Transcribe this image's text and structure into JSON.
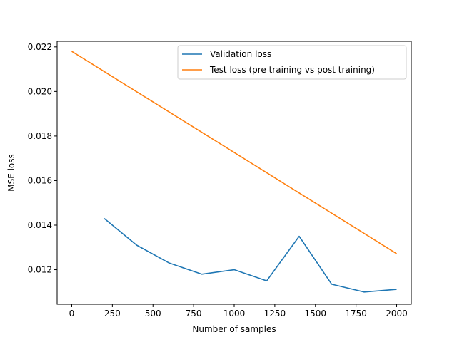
{
  "chart_data": {
    "type": "line",
    "title": "",
    "xlabel": "Number of samples",
    "ylabel": "MSE loss",
    "xlim": [
      -90,
      2090
    ],
    "ylim": [
      0.01045,
      0.02225
    ],
    "x_ticks": [
      0,
      250,
      500,
      750,
      1000,
      1250,
      1500,
      1750,
      2000
    ],
    "x_tick_labels": [
      "0",
      "250",
      "500",
      "750",
      "1000",
      "1250",
      "1500",
      "1750",
      "2000"
    ],
    "y_ticks": [
      0.012,
      0.014,
      0.016,
      0.018,
      0.02,
      0.022
    ],
    "y_tick_labels": [
      "0.012",
      "0.014",
      "0.016",
      "0.018",
      "0.020",
      "0.022"
    ],
    "grid": false,
    "legend_position": "top-right",
    "series": [
      {
        "name": "Validation loss",
        "color": "#1f77b4",
        "x": [
          200,
          400,
          600,
          800,
          1000,
          1200,
          1400,
          1600,
          1800,
          2000
        ],
        "y": [
          0.0143,
          0.0131,
          0.0123,
          0.0118,
          0.012,
          0.0115,
          0.0135,
          0.01135,
          0.011,
          0.01112
        ]
      },
      {
        "name": "Test loss (pre training vs post training)",
        "color": "#ff7f0e",
        "x": [
          0,
          2000
        ],
        "y": [
          0.0218,
          0.01272
        ]
      }
    ]
  }
}
